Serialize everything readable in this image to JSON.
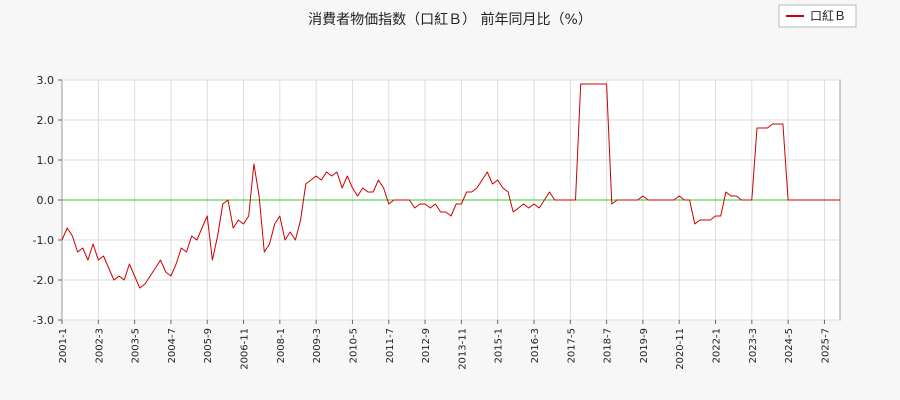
{
  "chart_data": {
    "type": "line",
    "title": "消費者物価指数（口紅Ｂ） 前年同月比（%）",
    "xlabel": "",
    "ylabel": "",
    "ylim": [
      -3.0,
      3.0
    ],
    "yticks": [
      "3.0",
      "2.0",
      "1.0",
      "0.0",
      "-1.0",
      "-2.0",
      "-3.0"
    ],
    "xlim": [
      "2001-01",
      "2026-01"
    ],
    "xticks": [
      "2001-1",
      "2002-3",
      "2003-5",
      "2004-7",
      "2005-9",
      "2006-11",
      "2008-1",
      "2009-3",
      "2010-5",
      "2011-7",
      "2012-9",
      "2013-11",
      "2015-1",
      "2016-3",
      "2017-5",
      "2018-7",
      "2019-9",
      "2020-11",
      "2022-1",
      "2023-3",
      "2024-5",
      "2025-7"
    ],
    "grid": true,
    "legend_position": "top-right",
    "zero_line_color": "#33cc33",
    "series": [
      {
        "name": "口紅Ｂ",
        "color": "#cc0000",
        "points": [
          [
            "2001-01",
            -1.0
          ],
          [
            "2001-03",
            -0.7
          ],
          [
            "2001-05",
            -0.9
          ],
          [
            "2001-07",
            -1.3
          ],
          [
            "2001-09",
            -1.2
          ],
          [
            "2001-11",
            -1.5
          ],
          [
            "2002-01",
            -1.1
          ],
          [
            "2002-03",
            -1.5
          ],
          [
            "2002-05",
            -1.4
          ],
          [
            "2002-07",
            -1.7
          ],
          [
            "2002-09",
            -2.0
          ],
          [
            "2002-11",
            -1.9
          ],
          [
            "2003-01",
            -2.0
          ],
          [
            "2003-03",
            -1.6
          ],
          [
            "2003-05",
            -1.9
          ],
          [
            "2003-07",
            -2.2
          ],
          [
            "2003-09",
            -2.1
          ],
          [
            "2003-11",
            -1.9
          ],
          [
            "2004-01",
            -1.7
          ],
          [
            "2004-03",
            -1.5
          ],
          [
            "2004-05",
            -1.8
          ],
          [
            "2004-07",
            -1.9
          ],
          [
            "2004-09",
            -1.6
          ],
          [
            "2004-11",
            -1.2
          ],
          [
            "2005-01",
            -1.3
          ],
          [
            "2005-03",
            -0.9
          ],
          [
            "2005-05",
            -1.0
          ],
          [
            "2005-07",
            -0.7
          ],
          [
            "2005-09",
            -0.4
          ],
          [
            "2005-11",
            -1.5
          ],
          [
            "2006-01",
            -0.9
          ],
          [
            "2006-03",
            -0.1
          ],
          [
            "2006-05",
            0.0
          ],
          [
            "2006-07",
            -0.7
          ],
          [
            "2006-09",
            -0.5
          ],
          [
            "2006-11",
            -0.6
          ],
          [
            "2007-01",
            -0.4
          ],
          [
            "2007-03",
            0.9
          ],
          [
            "2007-05",
            0.1
          ],
          [
            "2007-07",
            -1.3
          ],
          [
            "2007-09",
            -1.1
          ],
          [
            "2007-11",
            -0.6
          ],
          [
            "2008-01",
            -0.4
          ],
          [
            "2008-03",
            -1.0
          ],
          [
            "2008-05",
            -0.8
          ],
          [
            "2008-07",
            -1.0
          ],
          [
            "2008-09",
            -0.5
          ],
          [
            "2008-11",
            0.4
          ],
          [
            "2009-01",
            0.5
          ],
          [
            "2009-03",
            0.6
          ],
          [
            "2009-05",
            0.5
          ],
          [
            "2009-07",
            0.7
          ],
          [
            "2009-09",
            0.6
          ],
          [
            "2009-11",
            0.7
          ],
          [
            "2010-01",
            0.3
          ],
          [
            "2010-03",
            0.6
          ],
          [
            "2010-05",
            0.3
          ],
          [
            "2010-07",
            0.1
          ],
          [
            "2010-09",
            0.3
          ],
          [
            "2010-11",
            0.2
          ],
          [
            "2011-01",
            0.2
          ],
          [
            "2011-03",
            0.5
          ],
          [
            "2011-05",
            0.3
          ],
          [
            "2011-07",
            -0.1
          ],
          [
            "2011-09",
            0.0
          ],
          [
            "2011-11",
            0.0
          ],
          [
            "2012-01",
            0.0
          ],
          [
            "2012-03",
            0.0
          ],
          [
            "2012-05",
            -0.2
          ],
          [
            "2012-07",
            -0.1
          ],
          [
            "2012-09",
            -0.1
          ],
          [
            "2012-11",
            -0.2
          ],
          [
            "2013-01",
            -0.1
          ],
          [
            "2013-03",
            -0.3
          ],
          [
            "2013-05",
            -0.3
          ],
          [
            "2013-07",
            -0.4
          ],
          [
            "2013-09",
            -0.1
          ],
          [
            "2013-11",
            -0.1
          ],
          [
            "2014-01",
            0.2
          ],
          [
            "2014-03",
            0.2
          ],
          [
            "2014-05",
            0.3
          ],
          [
            "2014-07",
            0.5
          ],
          [
            "2014-09",
            0.7
          ],
          [
            "2014-11",
            0.4
          ],
          [
            "2015-01",
            0.5
          ],
          [
            "2015-03",
            0.3
          ],
          [
            "2015-05",
            0.2
          ],
          [
            "2015-07",
            -0.3
          ],
          [
            "2015-09",
            -0.2
          ],
          [
            "2015-11",
            -0.1
          ],
          [
            "2016-01",
            -0.2
          ],
          [
            "2016-03",
            -0.1
          ],
          [
            "2016-05",
            -0.2
          ],
          [
            "2016-07",
            0.0
          ],
          [
            "2016-09",
            0.2
          ],
          [
            "2016-11",
            0.0
          ],
          [
            "2017-01",
            0.0
          ],
          [
            "2017-03",
            0.0
          ],
          [
            "2017-05",
            0.0
          ],
          [
            "2017-07",
            0.0
          ],
          [
            "2017-09",
            2.9
          ],
          [
            "2017-11",
            2.9
          ],
          [
            "2018-01",
            2.9
          ],
          [
            "2018-03",
            2.9
          ],
          [
            "2018-05",
            2.9
          ],
          [
            "2018-07",
            2.9
          ],
          [
            "2018-09",
            -0.1
          ],
          [
            "2018-11",
            0.0
          ],
          [
            "2019-01",
            0.0
          ],
          [
            "2019-03",
            0.0
          ],
          [
            "2019-05",
            0.0
          ],
          [
            "2019-07",
            0.0
          ],
          [
            "2019-09",
            0.1
          ],
          [
            "2019-11",
            0.0
          ],
          [
            "2020-01",
            0.0
          ],
          [
            "2020-03",
            0.0
          ],
          [
            "2020-05",
            0.0
          ],
          [
            "2020-07",
            0.0
          ],
          [
            "2020-09",
            0.0
          ],
          [
            "2020-11",
            0.1
          ],
          [
            "2021-01",
            0.0
          ],
          [
            "2021-03",
            0.0
          ],
          [
            "2021-05",
            -0.6
          ],
          [
            "2021-07",
            -0.5
          ],
          [
            "2021-09",
            -0.5
          ],
          [
            "2021-11",
            -0.5
          ],
          [
            "2022-01",
            -0.4
          ],
          [
            "2022-03",
            -0.4
          ],
          [
            "2022-05",
            0.2
          ],
          [
            "2022-07",
            0.1
          ],
          [
            "2022-09",
            0.1
          ],
          [
            "2022-11",
            0.0
          ],
          [
            "2023-01",
            0.0
          ],
          [
            "2023-03",
            0.0
          ],
          [
            "2023-05",
            1.8
          ],
          [
            "2023-07",
            1.8
          ],
          [
            "2023-09",
            1.8
          ],
          [
            "2023-11",
            1.9
          ],
          [
            "2024-01",
            1.9
          ],
          [
            "2024-03",
            1.9
          ],
          [
            "2024-05",
            0.0
          ],
          [
            "2024-07",
            0.0
          ],
          [
            "2024-09",
            0.0
          ],
          [
            "2024-11",
            0.0
          ],
          [
            "2025-01",
            0.0
          ],
          [
            "2025-03",
            0.0
          ],
          [
            "2025-05",
            0.0
          ],
          [
            "2025-07",
            0.0
          ],
          [
            "2025-09",
            0.0
          ],
          [
            "2025-11",
            0.0
          ],
          [
            "2026-01",
            0.0
          ]
        ]
      }
    ]
  }
}
